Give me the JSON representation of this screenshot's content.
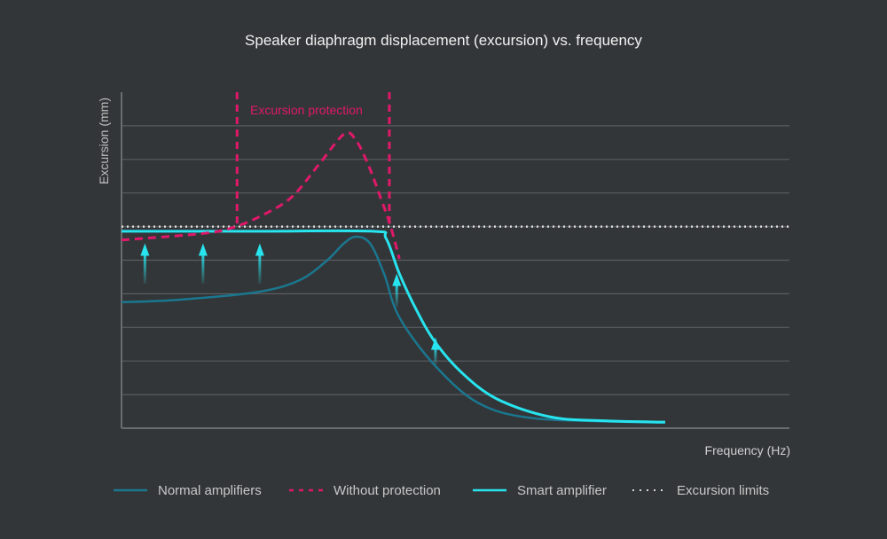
{
  "chart_data": {
    "type": "line",
    "title": "Speaker diaphragm displacement (excursion) vs. frequency",
    "xlabel": "Frequency (Hz)",
    "ylabel": "Excursion (mm)",
    "xlim": [
      0,
      100
    ],
    "ylim": [
      0,
      10
    ],
    "grid": true,
    "gridlines_y": [
      1,
      2,
      3,
      4,
      5,
      6,
      7,
      8,
      9
    ],
    "legend_position": "bottom",
    "annotation": {
      "text": "Excursion protection",
      "x_range": [
        17.3,
        40.1
      ],
      "color": "#e0186a"
    },
    "excursion_limit": 6.0,
    "series": [
      {
        "name": "Normal amplifiers",
        "style": "solid",
        "color": "#1a7790",
        "points": [
          [
            0,
            3.75
          ],
          [
            8.4,
            3.82
          ],
          [
            20.3,
            4.05
          ],
          [
            26.6,
            4.4
          ],
          [
            30.7,
            4.98
          ],
          [
            33.3,
            5.5
          ],
          [
            35.1,
            5.7
          ],
          [
            37.2,
            5.5
          ],
          [
            39.3,
            4.6
          ],
          [
            41.6,
            3.3
          ],
          [
            47.0,
            1.85
          ],
          [
            53.5,
            0.74
          ],
          [
            61.5,
            0.3
          ],
          [
            74.9,
            0.19
          ],
          [
            81.4,
            0.16
          ]
        ]
      },
      {
        "name": "Without protection",
        "style": "dashed",
        "color": "#e0186a",
        "points": [
          [
            0,
            5.6
          ],
          [
            12.4,
            5.8
          ],
          [
            17.1,
            6.0
          ],
          [
            21.7,
            6.4
          ],
          [
            25.6,
            6.9
          ],
          [
            29.6,
            7.86
          ],
          [
            33.3,
            8.75
          ],
          [
            35.0,
            8.6
          ],
          [
            36.9,
            7.86
          ],
          [
            38.9,
            6.8
          ],
          [
            40.3,
            6.0
          ],
          [
            41.6,
            5.04
          ]
        ]
      },
      {
        "name": "Smart amplifier",
        "style": "solid",
        "color": "#27e4ef",
        "points": [
          [
            0,
            5.86
          ],
          [
            20,
            5.86
          ],
          [
            37.6,
            5.86
          ],
          [
            39.6,
            5.65
          ],
          [
            41.6,
            4.6
          ],
          [
            44.2,
            3.5
          ],
          [
            46.9,
            2.58
          ],
          [
            50.9,
            1.66
          ],
          [
            56.2,
            0.87
          ],
          [
            64.1,
            0.34
          ],
          [
            72.1,
            0.22
          ],
          [
            81.4,
            0.18
          ]
        ]
      },
      {
        "name": "Excursion limits",
        "style": "dotted",
        "color": "#d8d8d8",
        "value": 6.0
      }
    ],
    "boost_arrows": [
      [
        3.5,
        4.3,
        5.5
      ],
      [
        12.2,
        4.3,
        5.5
      ],
      [
        20.7,
        4.3,
        5.5
      ],
      [
        41.2,
        3.6,
        4.6
      ],
      [
        47.0,
        1.9,
        2.7
      ]
    ]
  }
}
